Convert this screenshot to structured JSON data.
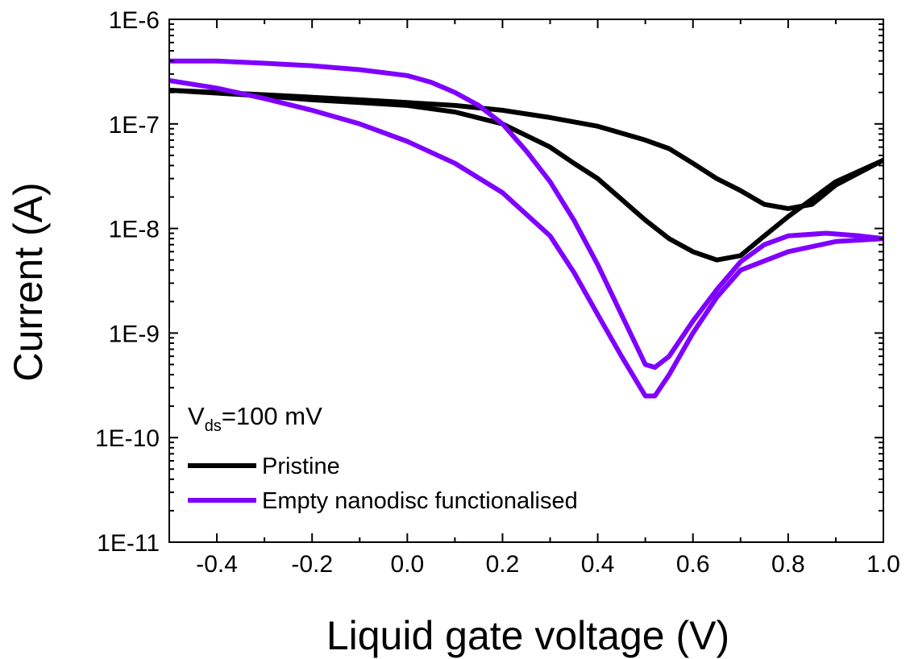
{
  "chart_data": {
    "type": "line",
    "title": "",
    "xlabel": "Liquid gate voltage (V)",
    "ylabel": "Current (A)",
    "xlim": [
      -0.5,
      1.0
    ],
    "ylim": [
      1e-11,
      1e-06
    ],
    "yscale": "log",
    "grid": false,
    "legend_position": "bottom-left",
    "x_ticks": [
      {
        "value": -0.4,
        "label": "-0.4"
      },
      {
        "value": -0.2,
        "label": "-0.2"
      },
      {
        "value": 0.0,
        "label": "0.0"
      },
      {
        "value": 0.2,
        "label": "0.2"
      },
      {
        "value": 0.4,
        "label": "0.4"
      },
      {
        "value": 0.6,
        "label": "0.6"
      },
      {
        "value": 0.8,
        "label": "0.8"
      },
      {
        "value": 1.0,
        "label": "1.0"
      }
    ],
    "y_ticks": [
      {
        "value": 1e-11,
        "label": "1E-11"
      },
      {
        "value": 1e-10,
        "label": "1E-10"
      },
      {
        "value": 1e-09,
        "label": "1E-9"
      },
      {
        "value": 1e-08,
        "label": "1E-8"
      },
      {
        "value": 1e-07,
        "label": "1E-7"
      },
      {
        "value": 1e-06,
        "label": "1E-6"
      }
    ],
    "annotation": {
      "main": "V",
      "subscript": "ds",
      "rest": "=100 mV"
    },
    "series": [
      {
        "name": "Pristine",
        "color": "#000000",
        "sweeps": [
          {
            "x": [
              -0.5,
              -0.4,
              -0.3,
              -0.2,
              -0.1,
              0.0,
              0.1,
              0.2,
              0.3,
              0.4,
              0.5,
              0.55,
              0.6,
              0.65,
              0.7,
              0.75,
              0.8,
              0.85,
              0.9,
              1.0
            ],
            "y": [
              2.1e-07,
              2e-07,
              1.9e-07,
              1.8e-07,
              1.7e-07,
              1.6e-07,
              1.5e-07,
              1.35e-07,
              1.15e-07,
              9.5e-08,
              7e-08,
              5.8e-08,
              4.2e-08,
              3e-08,
              2.3e-08,
              1.7e-08,
              1.55e-08,
              1.7e-08,
              2.6e-08,
              4.5e-08
            ]
          },
          {
            "x": [
              1.0,
              0.9,
              0.8,
              0.75,
              0.7,
              0.65,
              0.6,
              0.55,
              0.5,
              0.45,
              0.4,
              0.35,
              0.3,
              0.2,
              0.1,
              0.0,
              -0.1,
              -0.2,
              -0.3,
              -0.5
            ],
            "y": [
              4.5e-08,
              2.8e-08,
              1.3e-08,
              8.5e-09,
              5.5e-09,
              5e-09,
              6e-09,
              8e-09,
              1.2e-08,
              1.9e-08,
              3e-08,
              4.2e-08,
              6e-08,
              1e-07,
              1.3e-07,
              1.5e-07,
              1.6e-07,
              1.7e-07,
              1.85e-07,
              2.1e-07
            ]
          }
        ]
      },
      {
        "name": "Empty nanodisc functionalised",
        "color": "#7F00FF",
        "sweeps": [
          {
            "x": [
              -0.5,
              -0.4,
              -0.3,
              -0.2,
              -0.1,
              0.0,
              0.05,
              0.1,
              0.15,
              0.2,
              0.25,
              0.3,
              0.35,
              0.4,
              0.45,
              0.5,
              0.52,
              0.55,
              0.6,
              0.65,
              0.7,
              0.75,
              0.8,
              0.88,
              0.95,
              1.0
            ],
            "y": [
              4e-07,
              4e-07,
              3.8e-07,
              3.6e-07,
              3.3e-07,
              2.9e-07,
              2.5e-07,
              2e-07,
              1.5e-07,
              1e-07,
              5.5e-08,
              2.8e-08,
              1.2e-08,
              4.5e-09,
              1.5e-09,
              5e-10,
              4.7e-10,
              6e-10,
              1.3e-09,
              2.6e-09,
              4.8e-09,
              7e-09,
              8.5e-09,
              9e-09,
              8.5e-09,
              8e-09
            ]
          },
          {
            "x": [
              1.0,
              0.9,
              0.8,
              0.7,
              0.65,
              0.6,
              0.55,
              0.52,
              0.5,
              0.45,
              0.4,
              0.35,
              0.3,
              0.2,
              0.1,
              0.0,
              -0.1,
              -0.2,
              -0.3,
              -0.4,
              -0.5
            ],
            "y": [
              8e-09,
              7.5e-09,
              6e-09,
              4e-09,
              2.2e-09,
              1e-09,
              4e-10,
              2.5e-10,
              2.5e-10,
              6e-10,
              1.5e-09,
              3.8e-09,
              8.5e-09,
              2.2e-08,
              4.2e-08,
              6.8e-08,
              1e-07,
              1.35e-07,
              1.75e-07,
              2.2e-07,
              2.6e-07
            ]
          }
        ]
      }
    ]
  }
}
